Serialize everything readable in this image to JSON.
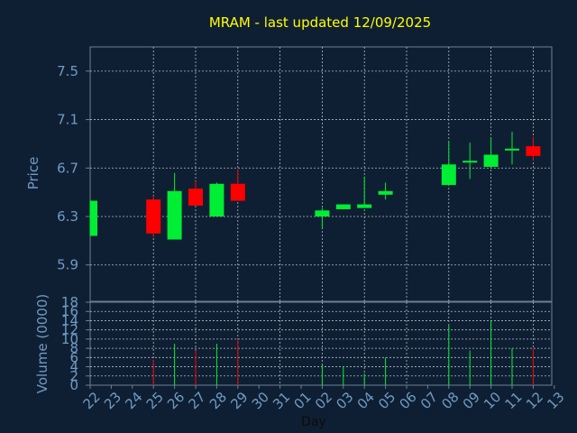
{
  "chart_data": {
    "type": "candlestick",
    "title": "MRAM - last updated 12/09/2025",
    "x_label": "Day",
    "x_tick_labels": [
      "22",
      "23",
      "24",
      "25",
      "26",
      "27",
      "28",
      "29",
      "30",
      "31",
      "01",
      "02",
      "03",
      "04",
      "05",
      "06",
      "07",
      "08",
      "09",
      "10",
      "11",
      "12",
      "13"
    ],
    "price": {
      "y_label": "Price",
      "ylim": [
        5.6,
        7.7
      ],
      "y_ticks": [
        5.9,
        6.3,
        6.7,
        7.1,
        7.5
      ],
      "grid": true,
      "up_color": "#00ee33",
      "down_color": "#ff0000",
      "candles": [
        {
          "day": "22",
          "open": 6.14,
          "high": 6.44,
          "low": 6.14,
          "close": 6.43
        },
        {
          "day": "25",
          "open": 6.44,
          "high": 6.47,
          "low": 6.13,
          "close": 6.16
        },
        {
          "day": "26",
          "open": 6.11,
          "high": 6.66,
          "low": 6.11,
          "close": 6.51
        },
        {
          "day": "27",
          "open": 6.53,
          "high": 6.59,
          "low": 6.39,
          "close": 6.39
        },
        {
          "day": "28",
          "open": 6.3,
          "high": 6.58,
          "low": 6.3,
          "close": 6.57
        },
        {
          "day": "29",
          "open": 6.57,
          "high": 6.69,
          "low": 6.43,
          "close": 6.43
        },
        {
          "day": "02",
          "open": 6.3,
          "high": 6.37,
          "low": 6.2,
          "close": 6.35
        },
        {
          "day": "03",
          "open": 6.36,
          "high": 6.4,
          "low": 6.36,
          "close": 6.4
        },
        {
          "day": "04",
          "open": 6.37,
          "high": 6.63,
          "low": 6.37,
          "close": 6.4
        },
        {
          "day": "05",
          "open": 6.48,
          "high": 6.58,
          "low": 6.44,
          "close": 6.51
        },
        {
          "day": "08",
          "open": 6.56,
          "high": 6.92,
          "low": 6.56,
          "close": 6.73
        },
        {
          "day": "09",
          "open": 6.75,
          "high": 6.91,
          "low": 6.61,
          "close": 6.76
        },
        {
          "day": "10",
          "open": 6.71,
          "high": 6.95,
          "low": 6.71,
          "close": 6.81
        },
        {
          "day": "11",
          "open": 6.85,
          "high": 7.0,
          "low": 6.73,
          "close": 6.86
        },
        {
          "day": "12",
          "open": 6.88,
          "high": 6.96,
          "low": 6.76,
          "close": 6.8
        }
      ]
    },
    "volume": {
      "y_label": "Volume (0000)",
      "ylim": [
        0,
        18
      ],
      "y_ticks": [
        0,
        2,
        4,
        6,
        8,
        10,
        12,
        14,
        16,
        18
      ],
      "grid": true,
      "bars": [
        {
          "day": "25",
          "value": 5.5,
          "color": "#ff0000"
        },
        {
          "day": "26",
          "value": 9.0,
          "color": "#00ee33"
        },
        {
          "day": "27",
          "value": 7.5,
          "color": "#ff0000"
        },
        {
          "day": "28",
          "value": 9.0,
          "color": "#00ee33"
        },
        {
          "day": "29",
          "value": 10.0,
          "color": "#ff0000"
        },
        {
          "day": "02",
          "value": 4.5,
          "color": "#00ee33"
        },
        {
          "day": "03",
          "value": 4.0,
          "color": "#00ee33"
        },
        {
          "day": "04",
          "value": 2.5,
          "color": "#00ee33"
        },
        {
          "day": "05",
          "value": 6.0,
          "color": "#00ee33"
        },
        {
          "day": "08",
          "value": 13.0,
          "color": "#00ee33"
        },
        {
          "day": "09",
          "value": 7.5,
          "color": "#00ee33"
        },
        {
          "day": "10",
          "value": 14.0,
          "color": "#00ee33"
        },
        {
          "day": "11",
          "value": 8.0,
          "color": "#00ee33"
        },
        {
          "day": "12",
          "value": 8.0,
          "color": "#ff0000"
        }
      ]
    }
  }
}
